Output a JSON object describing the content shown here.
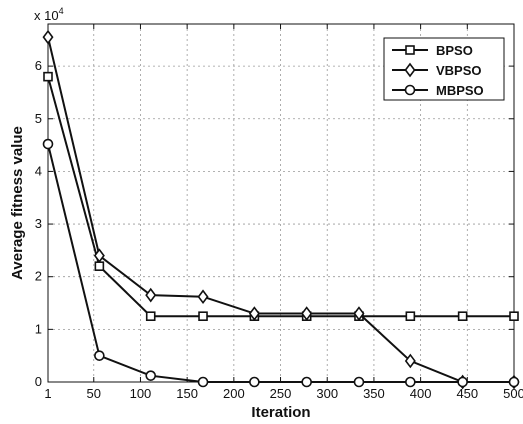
{
  "chart_data": {
    "type": "line",
    "xlabel": "Iteration",
    "ylabel": "Average fitness value",
    "y_exponent_label": "x 10",
    "y_exponent_power": "4",
    "xlim": [
      1,
      500
    ],
    "ylim": [
      0,
      6.8
    ],
    "x_ticks": [
      1,
      50,
      100,
      150,
      200,
      250,
      300,
      350,
      400,
      450,
      500
    ],
    "x_tick_labels": [
      "1",
      "50",
      "100",
      "150",
      "200",
      "250",
      "300",
      "350",
      "400",
      "450",
      "500"
    ],
    "y_ticks": [
      0,
      1,
      2,
      3,
      4,
      5,
      6
    ],
    "y_tick_labels": [
      "0",
      "1",
      "2",
      "3",
      "4",
      "5",
      "6"
    ],
    "grid": true,
    "legend_position": "top-right",
    "series": [
      {
        "name": "BPSO",
        "marker": "square",
        "x": [
          1,
          56,
          111,
          167,
          222,
          278,
          334,
          389,
          445,
          500
        ],
        "y": [
          5.8,
          2.2,
          1.25,
          1.25,
          1.25,
          1.25,
          1.25,
          1.25,
          1.25,
          1.25
        ]
      },
      {
        "name": "VBPSO",
        "marker": "diamond",
        "x": [
          1,
          56,
          111,
          167,
          222,
          278,
          334,
          389,
          445,
          500
        ],
        "y": [
          6.55,
          2.4,
          1.65,
          1.62,
          1.3,
          1.3,
          1.3,
          0.4,
          0.0,
          0.0
        ]
      },
      {
        "name": "MBPSO",
        "marker": "circle",
        "x": [
          1,
          56,
          111,
          167,
          222,
          278,
          334,
          389,
          445,
          500
        ],
        "y": [
          4.52,
          0.5,
          0.12,
          0.0,
          0.0,
          0.0,
          0.0,
          0.0,
          0.0,
          0.0
        ]
      }
    ]
  }
}
